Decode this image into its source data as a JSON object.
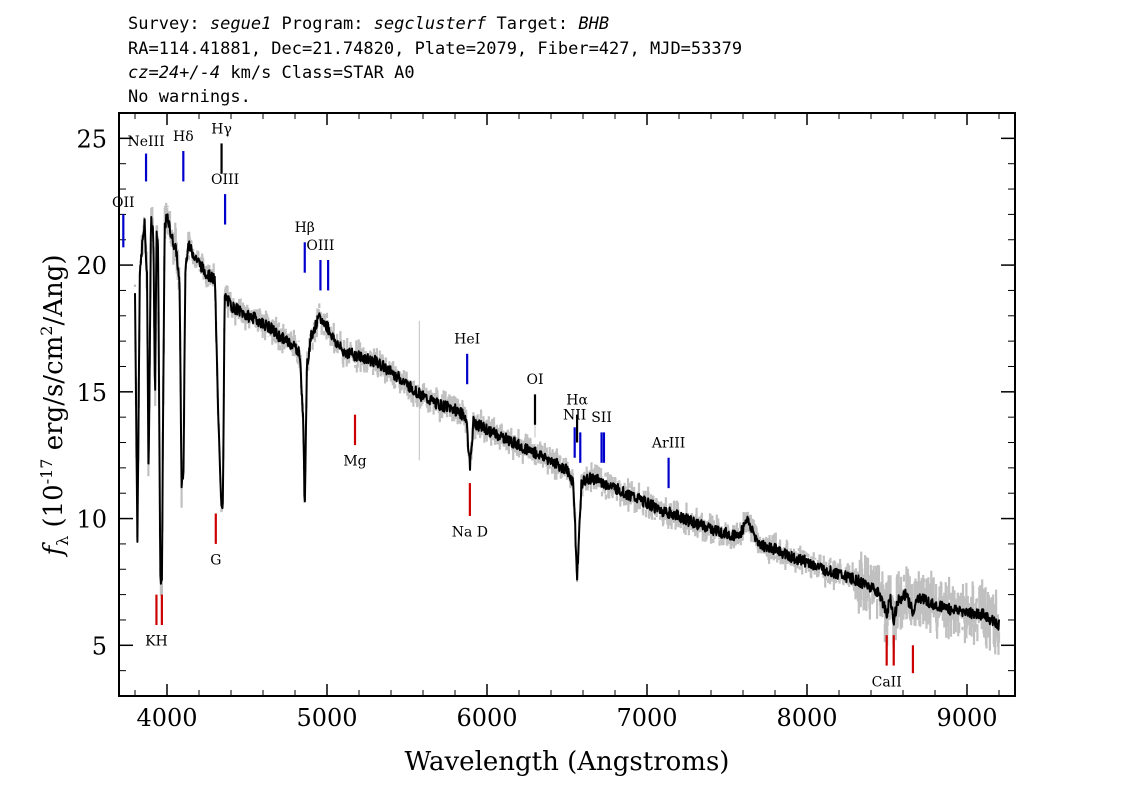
{
  "header": {
    "line1": {
      "a": "Survey: ",
      "b": "segue1",
      "c": " Program: ",
      "d": "segclusterf",
      "e": " Target: ",
      "f": "BHB"
    },
    "line2": "RA=114.41881, Dec=21.74820, Plate=2079, Fiber=427, MJD=53379",
    "line3": {
      "a": "cz=24+/-4",
      "b": " km/s Class=STAR A0"
    },
    "line4": "No warnings."
  },
  "chart_data": {
    "type": "line",
    "title": "",
    "xlabel": "Wavelength (Angstroms)",
    "ylabel": {
      "f": "f",
      "sub": "λ",
      "pre": " (10",
      "exp": "-17",
      "post": " erg/s/cm",
      "exp2": "2",
      "tail": "/Ang)"
    },
    "xlim": [
      3700,
      9300
    ],
    "ylim": [
      3,
      26
    ],
    "xticks": [
      4000,
      5000,
      6000,
      7000,
      8000,
      9000
    ],
    "xtick_labels": [
      "4000",
      "5000",
      "6000",
      "7000",
      "8000",
      "9000"
    ],
    "yticks": [
      5,
      10,
      15,
      20,
      25
    ],
    "ytick_labels": [
      "5",
      "10",
      "15",
      "20",
      "25"
    ],
    "grid": false,
    "series": [
      {
        "role": "spectrum",
        "color": "#000000",
        "x": [
          3800,
          3815,
          3830,
          3845,
          3860,
          3875,
          3885,
          3900,
          3915,
          3925,
          3935,
          3945,
          3958,
          3968,
          3985,
          4000,
          4030,
          4060,
          4080,
          4090,
          4102,
          4115,
          4130,
          4160,
          4200,
          4230,
          4260,
          4300,
          4320,
          4340,
          4350,
          4360,
          4400,
          4450,
          4500,
          4550,
          4600,
          4650,
          4700,
          4750,
          4800,
          4830,
          4850,
          4861,
          4875,
          4900,
          4950,
          5000,
          5050,
          5100,
          5200,
          5300,
          5400,
          5500,
          5600,
          5700,
          5800,
          5870,
          5893,
          5915,
          6000,
          6100,
          6200,
          6300,
          6400,
          6450,
          6500,
          6540,
          6563,
          6590,
          6650,
          6700,
          6800,
          6900,
          7000,
          7100,
          7200,
          7300,
          7400,
          7500,
          7580,
          7620,
          7700,
          7800,
          7900,
          8000,
          8100,
          8200,
          8300,
          8400,
          8450,
          8498,
          8520,
          8542,
          8570,
          8620,
          8662,
          8700,
          8800,
          8900,
          9000,
          9100,
          9200
        ],
        "y": [
          18.9,
          9.2,
          19.5,
          20.8,
          21.6,
          19.5,
          11.5,
          21.8,
          21.2,
          14.5,
          21.5,
          20.5,
          7.6,
          7.6,
          21.5,
          21.9,
          21.1,
          20.5,
          19.0,
          11.4,
          11.4,
          19.8,
          20.8,
          20.5,
          20.1,
          19.8,
          19.6,
          19.4,
          14.0,
          10.6,
          10.6,
          18.8,
          18.4,
          18.2,
          18.0,
          17.9,
          17.7,
          17.5,
          17.2,
          17.0,
          16.8,
          16.5,
          14.0,
          10.5,
          16.0,
          17.2,
          17.9,
          17.6,
          17.0,
          16.6,
          16.4,
          16.2,
          15.8,
          15.3,
          14.8,
          14.5,
          14.3,
          14.0,
          12.0,
          13.8,
          13.5,
          13.2,
          12.9,
          12.6,
          12.3,
          12.1,
          11.9,
          11.4,
          7.6,
          11.4,
          11.6,
          11.5,
          11.2,
          10.9,
          10.6,
          10.3,
          10.1,
          9.8,
          9.6,
          9.4,
          9.3,
          10.0,
          9.0,
          8.8,
          8.5,
          8.3,
          8.0,
          7.8,
          7.6,
          7.3,
          7.1,
          6.2,
          6.9,
          6.0,
          6.8,
          7.0,
          6.3,
          6.9,
          6.6,
          6.4,
          6.3,
          6.2,
          5.8
        ]
      },
      {
        "role": "error",
        "color": "#c0c0c0"
      }
    ],
    "line_markers": [
      {
        "label": "OII",
        "wavelength": 3727,
        "y_low": 20.7,
        "y_high": 22.0,
        "color": "#0000cc",
        "label_y": 22.3
      },
      {
        "label": "NeIII",
        "wavelength": 3869,
        "y_low": 23.3,
        "y_high": 24.4,
        "color": "#0000cc",
        "label_y": 24.7
      },
      {
        "label": "Hδ",
        "wavelength": 4102,
        "y_low": 23.3,
        "y_high": 24.5,
        "color": "#0000cc",
        "label_y": 24.9
      },
      {
        "label": "Hγ",
        "wavelength": 4341,
        "y_low": 23.6,
        "y_high": 24.8,
        "color": "#000000",
        "label_y": 25.2
      },
      {
        "label": "OIII",
        "wavelength": 4363,
        "y_low": 21.6,
        "y_high": 22.8,
        "color": "#0000cc",
        "label_y": 23.2
      },
      {
        "label": "Hβ",
        "wavelength": 4861,
        "y_low": 19.7,
        "y_high": 20.9,
        "color": "#0000cc",
        "label_y": 21.3
      },
      {
        "label": "OIII",
        "wavelength": 4959,
        "y_low": 19.0,
        "y_high": 20.2,
        "color": "#0000cc",
        "label_y": 20.6
      },
      {
        "label": "",
        "wavelength": 5007,
        "y_low": 19.0,
        "y_high": 20.2,
        "color": "#0000cc",
        "label_y": 20.6
      },
      {
        "label": "HeI",
        "wavelength": 5876,
        "y_low": 15.3,
        "y_high": 16.5,
        "color": "#0000cc",
        "label_y": 16.9
      },
      {
        "label": "OI",
        "wavelength": 6300,
        "y_low": 13.7,
        "y_high": 14.9,
        "color": "#000000",
        "label_y": 15.3
      },
      {
        "label": "NII",
        "wavelength": 6548,
        "y_low": 12.4,
        "y_high": 13.6,
        "color": "#0000cc",
        "label_y": 13.9
      },
      {
        "label": "Hα",
        "wavelength": 6563,
        "y_low": 13.0,
        "y_high": 14.1,
        "color": "#000000",
        "label_y": 14.5
      },
      {
        "label": "",
        "wavelength": 6583,
        "y_low": 12.2,
        "y_high": 13.4,
        "color": "#0000cc",
        "label_y": 13.8
      },
      {
        "label": "SII",
        "wavelength": 6716,
        "y_low": 12.2,
        "y_high": 13.4,
        "color": "#0000cc",
        "label_y": 13.8
      },
      {
        "label": "",
        "wavelength": 6731,
        "y_low": 12.2,
        "y_high": 13.4,
        "color": "#0000cc",
        "label_y": 13.8
      },
      {
        "label": "ArIII",
        "wavelength": 7135,
        "y_low": 11.2,
        "y_high": 12.4,
        "color": "#0000cc",
        "label_y": 12.8
      },
      {
        "label": "Mg",
        "wavelength": 5175,
        "y_low": 12.9,
        "y_high": 14.1,
        "color": "#cc0000",
        "label_y": 12.4,
        "below": true
      },
      {
        "label": "G",
        "wavelength": 4305,
        "y_low": 9.0,
        "y_high": 10.2,
        "color": "#cc0000",
        "label_y": 8.5,
        "below": true
      },
      {
        "label": "Na D",
        "wavelength": 5893,
        "y_low": 10.1,
        "y_high": 11.4,
        "color": "#cc0000",
        "label_y": 9.6,
        "below": true
      },
      {
        "label": "KH",
        "wavelength": 3934,
        "y_low": 5.8,
        "y_high": 7.0,
        "color": "#cc0000",
        "label_y": 5.3,
        "below": true
      },
      {
        "label": "",
        "wavelength": 3968,
        "y_low": 5.8,
        "y_high": 7.0,
        "color": "#cc0000",
        "label_y": 5.3,
        "below": true
      },
      {
        "label": "CaII",
        "wavelength": 8498,
        "y_low": 4.2,
        "y_high": 5.4,
        "color": "#cc0000",
        "label_y": 3.7,
        "below": true
      },
      {
        "label": "",
        "wavelength": 8542,
        "y_low": 4.2,
        "y_high": 5.4,
        "color": "#cc0000",
        "label_y": 3.7,
        "below": true
      },
      {
        "label": "",
        "wavelength": 8662,
        "y_low": 3.9,
        "y_high": 5.0,
        "color": "#cc0000",
        "label_y": 3.7,
        "below": true
      }
    ]
  }
}
